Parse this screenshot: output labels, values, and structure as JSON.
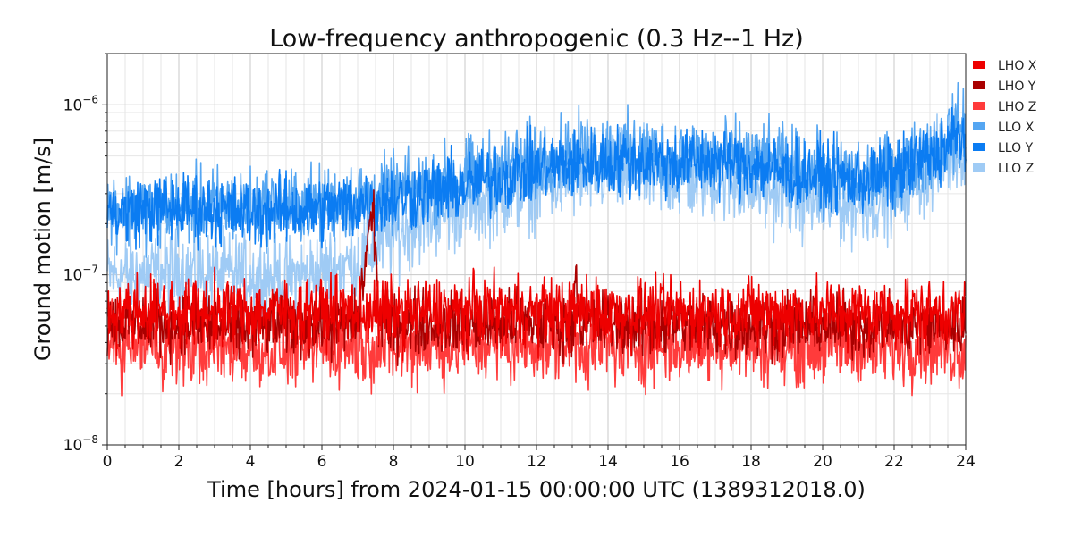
{
  "chart_data": {
    "type": "line",
    "title": "Low-frequency anthropogenic (0.3 Hz--1 Hz)",
    "xlabel": "Time [hours] from 2024-01-15 00:00:00 UTC (1389312018.0)",
    "ylabel": "Ground motion [m/s]",
    "xlim": [
      0,
      24
    ],
    "ylim": [
      1e-08,
      2e-06
    ],
    "yscale": "log",
    "grid": true,
    "legend_position": "right",
    "x_ticks": [
      0,
      2,
      4,
      6,
      8,
      10,
      12,
      14,
      16,
      18,
      20,
      22,
      24
    ],
    "x_tick_labels": [
      "0",
      "2",
      "4",
      "6",
      "8",
      "10",
      "12",
      "14",
      "16",
      "18",
      "20",
      "22",
      "24"
    ],
    "y_ticks": [
      1e-08,
      1e-07,
      1e-06
    ],
    "y_tick_labels": [
      {
        "base": "10",
        "exp": "−8"
      },
      {
        "base": "10",
        "exp": "−7"
      },
      {
        "base": "10",
        "exp": "−6"
      }
    ],
    "series": [
      {
        "name": "LHO X",
        "color": "#ee0000",
        "x": [
          0,
          1,
          2,
          3,
          4,
          5,
          6,
          7,
          7.4,
          7.6,
          8,
          9,
          10,
          10.8,
          11,
          12,
          13,
          13.2,
          14,
          15,
          16,
          17,
          18,
          19,
          20,
          21,
          22,
          23,
          24
        ],
        "y": [
          6e-08,
          6.2e-08,
          6e-08,
          6.1e-08,
          6e-08,
          6e-08,
          6.1e-08,
          6e-08,
          6.2e-08,
          6e-08,
          6e-08,
          6e-08,
          6.1e-08,
          6.3e-08,
          6e-08,
          6e-08,
          6e-08,
          6.2e-08,
          6e-08,
          6e-08,
          6e-08,
          6e-08,
          6e-08,
          6e-08,
          6e-08,
          6e-08,
          6e-08,
          6e-08,
          6e-08
        ]
      },
      {
        "name": "LHO Y",
        "color": "#aa0000",
        "x": [
          0,
          1,
          2,
          3,
          4,
          5,
          6,
          7,
          7.4,
          7.5,
          7.6,
          8,
          9,
          10,
          11,
          12,
          13,
          13.1,
          13.2,
          14,
          15,
          16,
          17,
          18,
          19,
          20,
          21,
          22,
          23,
          24
        ],
        "y": [
          5.2e-08,
          5.3e-08,
          5.2e-08,
          5e-08,
          5e-08,
          5.2e-08,
          5.1e-08,
          5.2e-08,
          2.4e-07,
          1.5e-07,
          5.2e-08,
          5.1e-08,
          5.2e-08,
          5.1e-08,
          5.2e-08,
          5.2e-08,
          5.1e-08,
          1.1e-07,
          5.2e-08,
          5.2e-08,
          5.1e-08,
          5.2e-08,
          5.1e-08,
          5e-08,
          5e-08,
          5.1e-08,
          5.1e-08,
          5.1e-08,
          5e-08,
          5e-08
        ]
      },
      {
        "name": "LHO Z",
        "color": "#ff3b3b",
        "x": [
          0,
          1,
          2,
          3,
          4,
          5,
          6,
          7,
          8,
          9,
          10,
          11,
          12,
          13,
          14,
          15,
          16,
          17,
          18,
          19,
          20,
          21,
          22,
          23,
          24
        ],
        "y": [
          3.9e-08,
          4e-08,
          3.7e-08,
          3.8e-08,
          3.6e-08,
          3.7e-08,
          3.8e-08,
          3.8e-08,
          3.8e-08,
          3.8e-08,
          3.9e-08,
          3.9e-08,
          3.9e-08,
          3.9e-08,
          3.8e-08,
          3.8e-08,
          3.8e-08,
          4e-08,
          3.9e-08,
          3.8e-08,
          3.9e-08,
          3.8e-08,
          3.7e-08,
          3.9e-08,
          3.5e-08
        ]
      },
      {
        "name": "LLO X",
        "color": "#55a6f2",
        "x": [
          0,
          1,
          2,
          3,
          4,
          5,
          6,
          7,
          8,
          9,
          10,
          11,
          12,
          13,
          14,
          15,
          16,
          17,
          18,
          19,
          20,
          21,
          22,
          23,
          24
        ],
        "y": [
          2.5e-07,
          2.4e-07,
          2.5e-07,
          2.6e-07,
          2.5e-07,
          2.6e-07,
          2.6e-07,
          2.8e-07,
          3e-07,
          3.3e-07,
          3.8e-07,
          4.3e-07,
          4.8e-07,
          5.2e-07,
          5.4e-07,
          5.2e-07,
          5e-07,
          5e-07,
          4.8e-07,
          4.4e-07,
          4e-07,
          3.7e-07,
          4e-07,
          5.4e-07,
          7.8e-07
        ]
      },
      {
        "name": "LLO Y",
        "color": "#0b7cf2",
        "x": [
          0,
          1,
          2,
          3,
          4,
          5,
          6,
          7,
          8,
          9,
          10,
          11,
          12,
          13,
          14,
          15,
          16,
          17,
          18,
          19,
          20,
          21,
          22,
          23,
          24
        ],
        "y": [
          2.3e-07,
          2.4e-07,
          2.5e-07,
          2.4e-07,
          2.3e-07,
          2.4e-07,
          2.4e-07,
          2.6e-07,
          2.8e-07,
          3.1e-07,
          3.3e-07,
          3.8e-07,
          4.2e-07,
          4.5e-07,
          4.6e-07,
          4.7e-07,
          4.5e-07,
          4.6e-07,
          4.4e-07,
          4e-07,
          3.8e-07,
          3.6e-07,
          3.9e-07,
          5e-07,
          6.8e-07
        ]
      },
      {
        "name": "LLO Z",
        "color": "#9fcbf5",
        "x": [
          0,
          1,
          2,
          3,
          4,
          5,
          6,
          7,
          7.5,
          8,
          9,
          10,
          11,
          12,
          13,
          14,
          15,
          16,
          17,
          18,
          19,
          20,
          21,
          22,
          23,
          24
        ],
        "y": [
          1e-07,
          1e-07,
          1.05e-07,
          1e-07,
          1e-07,
          9.5e-08,
          1.05e-07,
          1.2e-07,
          1.5e-07,
          1.7e-07,
          2.2e-07,
          2.5e-07,
          2.9e-07,
          3.3e-07,
          3.7e-07,
          4e-07,
          3.9e-07,
          3.7e-07,
          3.6e-07,
          3.3e-07,
          3e-07,
          2.6e-07,
          2.6e-07,
          3e-07,
          4.1e-07,
          6e-07
        ]
      }
    ]
  }
}
